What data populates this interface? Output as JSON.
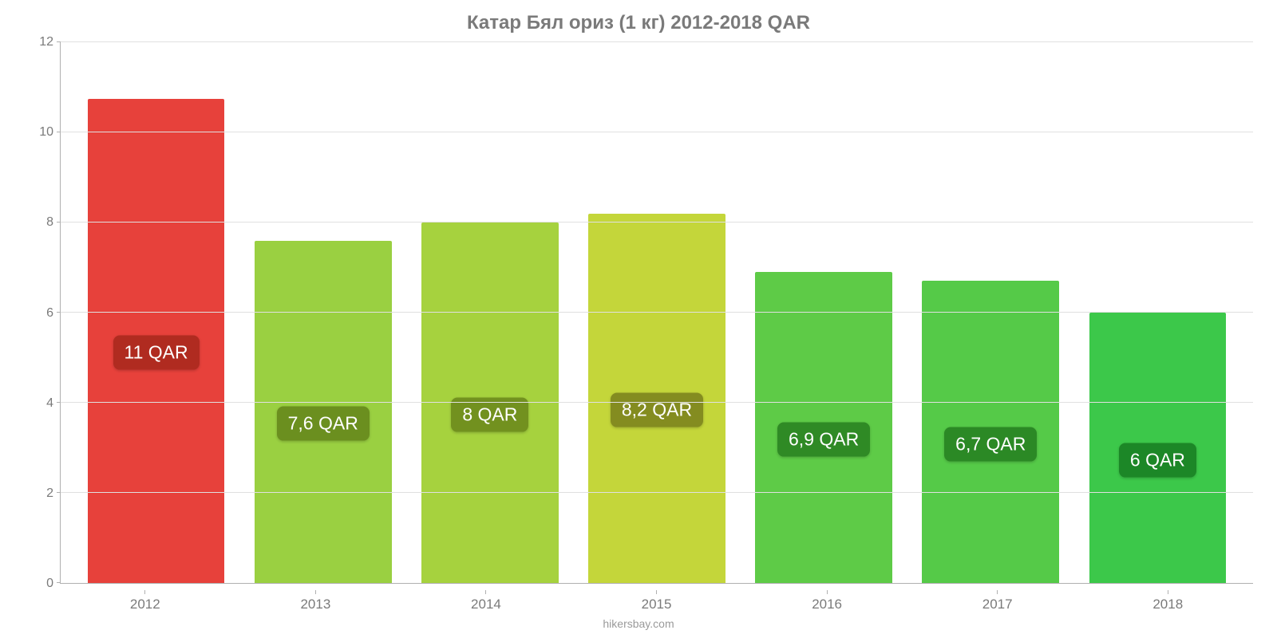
{
  "chart": {
    "type": "bar",
    "title": "Катар Бял ориз (1 кг) 2012-2018 QAR",
    "title_color": "#7a7a7a",
    "title_fontsize": 24,
    "attribution": "hikersbay.com",
    "attribution_color": "#9a9a9a",
    "background_color": "#ffffff",
    "grid_color": "#e0e0e0",
    "axis_color": "#b0b0b0",
    "label_color": "#7a7a7a",
    "ylim_min": 0,
    "ylim_max": 12,
    "ytick_step": 2,
    "yticks": [
      0,
      2,
      4,
      6,
      8,
      10,
      12
    ],
    "categories": [
      "2012",
      "2013",
      "2014",
      "2015",
      "2016",
      "2017",
      "2018"
    ],
    "bars": [
      {
        "value": 10.75,
        "label": "11 QAR",
        "bar_color": "#e7413b",
        "badge_color": "#b02b20"
      },
      {
        "value": 7.6,
        "label": "7,6 QAR",
        "bar_color": "#9ad041",
        "badge_color": "#6b8f1f"
      },
      {
        "value": 8.0,
        "label": "8 QAR",
        "bar_color": "#a6d23e",
        "badge_color": "#72911f"
      },
      {
        "value": 8.2,
        "label": "8,2 QAR",
        "bar_color": "#c4d63a",
        "badge_color": "#848c20"
      },
      {
        "value": 6.9,
        "label": "6,9 QAR",
        "bar_color": "#5ecb47",
        "badge_color": "#2f8a25"
      },
      {
        "value": 6.7,
        "label": "6,7 QAR",
        "bar_color": "#55ca48",
        "badge_color": "#2b8925"
      },
      {
        "value": 6.0,
        "label": "6 QAR",
        "bar_color": "#3cc84a",
        "badge_color": "#1c8727"
      }
    ],
    "bar_label_fontsize": 23,
    "bar_label_text_color": "#ffffff",
    "x_tick_fontsize": 17,
    "y_tick_fontsize": 16
  }
}
